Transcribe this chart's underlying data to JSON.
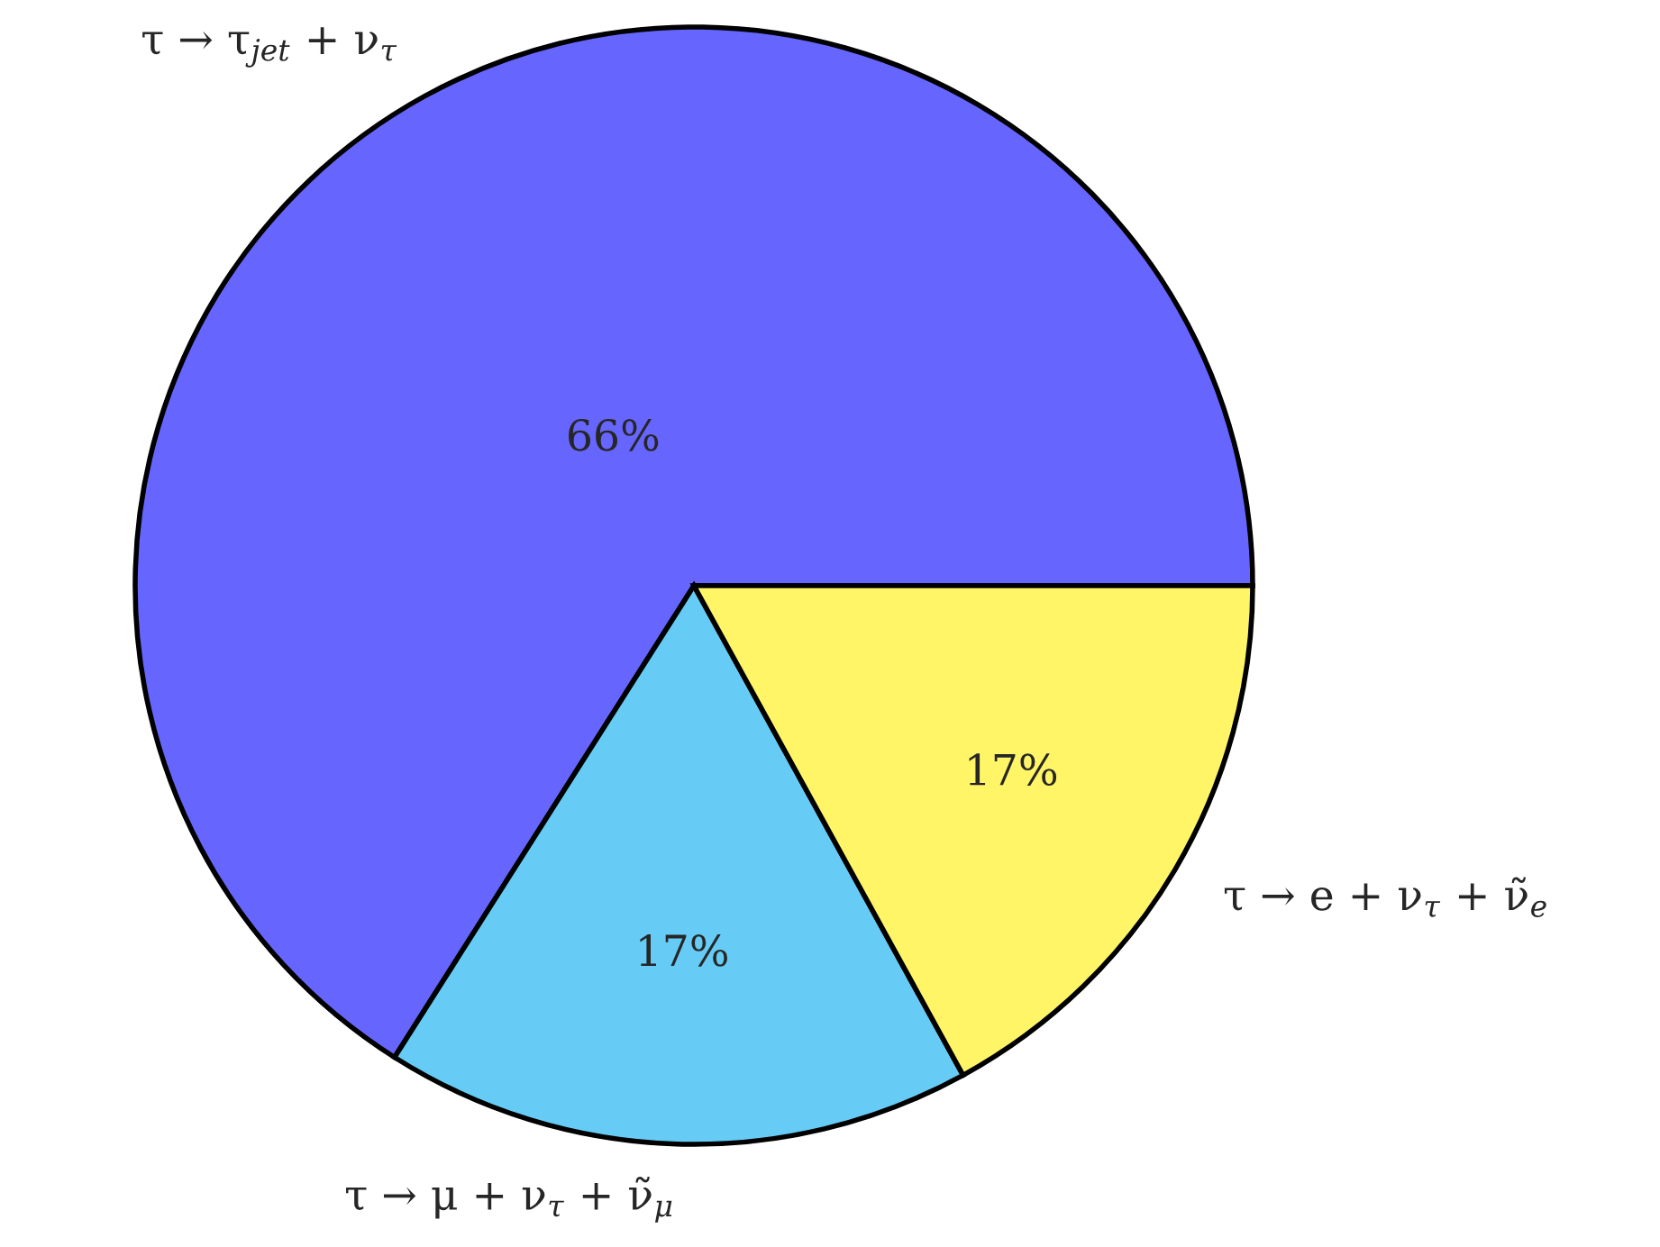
{
  "chart_data": {
    "type": "pie",
    "categories": [
      "τ → τ$_{jet}$ + ν$_{τ}$",
      "τ → μ + ν$_{τ}$ + ν̃$_{μ}$",
      "τ → e + ν$_{τ}$ + ν̃$_{e}$"
    ],
    "values": [
      66,
      17,
      17
    ],
    "value_labels": [
      "66%",
      "17%",
      "17%"
    ],
    "colors": [
      "#6666ff",
      "#66ccf5",
      "#fff566"
    ]
  }
}
